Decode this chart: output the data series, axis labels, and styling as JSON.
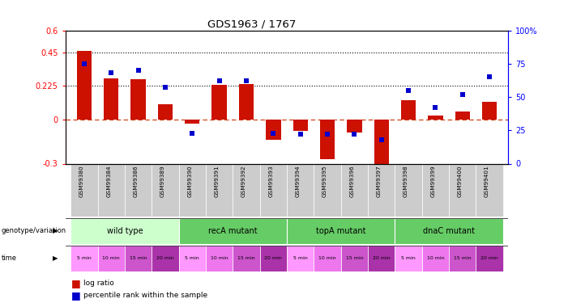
{
  "title": "GDS1963 / 1767",
  "samples": [
    "GSM99380",
    "GSM99384",
    "GSM99386",
    "GSM99389",
    "GSM99390",
    "GSM99391",
    "GSM99392",
    "GSM99393",
    "GSM99394",
    "GSM99395",
    "GSM99396",
    "GSM99397",
    "GSM99398",
    "GSM99399",
    "GSM99400",
    "GSM99401"
  ],
  "log_ratio": [
    0.46,
    0.275,
    0.27,
    0.1,
    -0.03,
    0.23,
    0.235,
    -0.14,
    -0.08,
    -0.27,
    -0.09,
    -0.32,
    0.13,
    0.025,
    0.05,
    0.12
  ],
  "percentile": [
    75,
    68,
    70,
    57,
    23,
    62,
    62,
    23,
    22,
    22,
    22,
    18,
    55,
    42,
    52,
    65
  ],
  "ylim_left": [
    -0.3,
    0.6
  ],
  "ylim_right": [
    0,
    100
  ],
  "yticks_left": [
    -0.3,
    0.0,
    0.225,
    0.45,
    0.6
  ],
  "yticks_right": [
    0,
    25,
    50,
    75,
    100
  ],
  "groups": [
    {
      "label": "wild type",
      "start": 0,
      "end": 4,
      "color": "#CCFFCC"
    },
    {
      "label": "recA mutant",
      "start": 4,
      "end": 8,
      "color": "#66CC66"
    },
    {
      "label": "topA mutant",
      "start": 8,
      "end": 12,
      "color": "#66CC66"
    },
    {
      "label": "dnaC mutant",
      "start": 12,
      "end": 16,
      "color": "#66CC66"
    }
  ],
  "time_labels": [
    "5 min",
    "10 min",
    "15 min",
    "20 min",
    "5 min",
    "10 min",
    "15 min",
    "20 min",
    "5 min",
    "10 min",
    "15 min",
    "20 min",
    "5 min",
    "10 min",
    "15 min",
    "20 min"
  ],
  "time_colors_cycle": [
    "#FF99FF",
    "#EE77EE",
    "#CC55CC",
    "#AA33AA"
  ],
  "sample_bg_color": "#CCCCCC",
  "bar_color": "#CC1100",
  "square_color": "#0000CC",
  "zero_line_color": "#CC3300",
  "bar_width": 0.55
}
